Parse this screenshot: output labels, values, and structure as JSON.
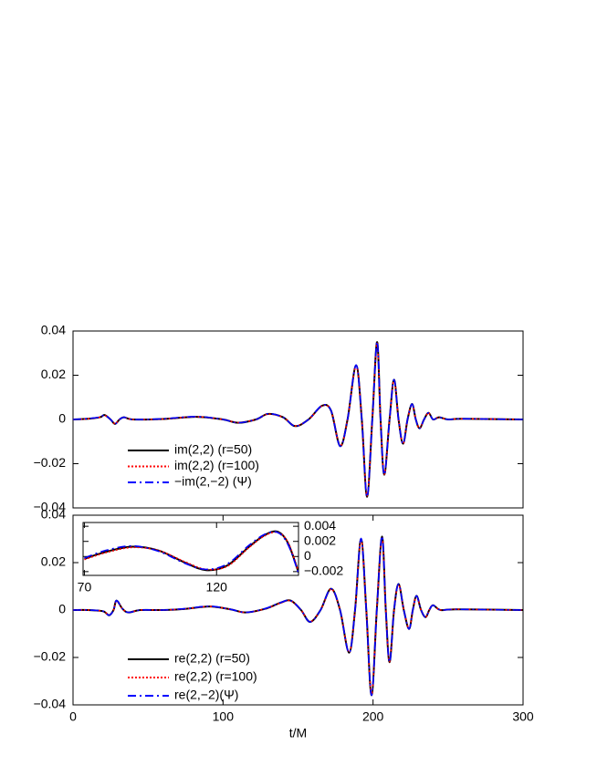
{
  "chart_data": [
    {
      "type": "line",
      "panel": "top",
      "x": [
        0,
        10,
        18,
        21,
        25,
        28,
        31,
        34,
        40,
        60,
        82,
        100,
        110,
        122,
        130,
        140,
        148,
        157,
        166,
        172,
        178,
        183,
        188.7,
        192.5,
        196,
        199.5,
        202.7,
        205,
        207.5,
        211,
        214,
        217,
        220,
        223,
        226,
        228.5,
        231,
        234,
        237,
        240,
        244,
        250,
        260,
        300
      ],
      "series": [
        {
          "name": "im(2,2) (r=50)",
          "color": "#000000",
          "dash": "solid",
          "values": [
            0,
            0.0003,
            0.001,
            0.002,
            0,
            -0.002,
            0,
            0.001,
            0,
            0.0002,
            0.0012,
            0,
            -0.0015,
            0,
            0.0025,
            0.001,
            -0.003,
            0,
            0.0062,
            0.004,
            -0.012,
            0,
            0.0245,
            0,
            -0.035,
            0,
            0.035,
            0,
            -0.025,
            0,
            0.018,
            0,
            -0.011,
            0,
            0.007,
            0,
            -0.004,
            0,
            0.003,
            0,
            0.001,
            0,
            0.0003,
            0
          ]
        },
        {
          "name": "im(2,2) (r=100)",
          "color": "#ff0000",
          "dash": "dotted",
          "values": [
            0,
            0.0003,
            0.001,
            0.0019,
            0,
            -0.0019,
            0,
            0.001,
            0,
            0.0002,
            0.0012,
            0,
            -0.0014,
            0,
            0.0024,
            0.001,
            -0.0029,
            0,
            0.0061,
            0.004,
            -0.0118,
            0,
            0.0242,
            0,
            -0.0345,
            0,
            0.0345,
            0,
            -0.0248,
            0,
            0.0178,
            0,
            -0.011,
            0,
            0.0068,
            0,
            -0.004,
            0,
            0.0029,
            0,
            0.001,
            0,
            0.0003,
            0
          ]
        },
        {
          "name": "−im(2,−2) (Ψ)",
          "color": "#0000ff",
          "dash": "dashdot",
          "values": [
            0,
            0.0004,
            0.0011,
            0.002,
            0,
            -0.002,
            0,
            0.001,
            0,
            0.0003,
            0.0013,
            0,
            -0.0015,
            0,
            0.0026,
            0.001,
            -0.003,
            0,
            0.0063,
            0.004,
            -0.0121,
            0,
            0.0246,
            0,
            -0.035,
            0,
            0.0352,
            0,
            -0.025,
            0,
            0.018,
            0,
            -0.011,
            0,
            0.007,
            0,
            -0.004,
            0,
            0.003,
            0,
            0.001,
            0,
            0.0003,
            0
          ]
        }
      ],
      "xlim": [
        0,
        300
      ],
      "ylim": [
        -0.04,
        0.04
      ],
      "yticks": [
        {
          "value": -0.04,
          "label": "−0.04"
        },
        {
          "value": -0.02,
          "label": "−0.02"
        },
        0,
        0.02,
        0.04
      ],
      "legend": "lower left"
    },
    {
      "type": "line",
      "panel": "bottom",
      "xlabel": "t/M",
      "x": [
        0,
        10,
        20,
        24,
        27,
        29,
        33,
        37,
        45,
        60,
        75,
        91,
        105,
        115,
        128,
        138,
        145,
        152,
        158,
        165,
        172,
        178,
        184,
        188,
        192,
        195.5,
        199,
        202.5,
        206,
        208.5,
        211,
        214,
        217,
        220.5,
        224,
        226.5,
        229,
        232,
        235,
        237.5,
        240,
        245,
        255,
        300
      ],
      "series": [
        {
          "name": "re(2,2) (r=50)",
          "color": "#000000",
          "dash": "solid",
          "values": [
            0,
            0,
            -0.0005,
            -0.0022,
            0,
            0.004,
            0.0005,
            -0.001,
            0,
            0,
            0.0005,
            0.0015,
            0.0003,
            -0.001,
            0.0005,
            0.003,
            0.004,
            0,
            -0.005,
            0,
            0.009,
            0,
            -0.018,
            0,
            0.03,
            0,
            -0.036,
            0,
            0.031,
            0,
            -0.022,
            0,
            0.011,
            0,
            -0.008,
            0,
            0.006,
            0,
            -0.003,
            0,
            0.002,
            0,
            0.0003,
            0
          ]
        },
        {
          "name": "re(2,2) (r=100)",
          "color": "#ff0000",
          "dash": "dotted",
          "values": [
            0,
            0,
            -0.0005,
            -0.0021,
            0,
            0.0039,
            0.0005,
            -0.001,
            0,
            0,
            0.0005,
            0.0015,
            0.0003,
            -0.001,
            0.0005,
            0.0029,
            0.0039,
            0,
            -0.0049,
            0,
            0.0088,
            0,
            -0.0178,
            0,
            0.0297,
            0,
            -0.0356,
            0,
            0.0307,
            0,
            -0.0218,
            0,
            0.0108,
            0,
            -0.0079,
            0,
            0.0059,
            0,
            -0.003,
            0,
            0.002,
            0,
            0.0003,
            0
          ]
        },
        {
          "name": "re(2,−2)(Ψ)",
          "color": "#0000ff",
          "dash": "dashdot",
          "values": [
            0,
            0,
            -0.0005,
            -0.0022,
            0,
            0.004,
            0.0005,
            -0.001,
            0,
            0,
            0.0006,
            0.0016,
            0.0003,
            -0.001,
            0.0006,
            0.0031,
            0.004,
            0,
            -0.005,
            0,
            0.009,
            0,
            -0.018,
            0,
            0.0302,
            0,
            -0.036,
            0,
            0.0312,
            0,
            -0.022,
            0,
            0.011,
            0,
            -0.008,
            0,
            0.006,
            0,
            -0.003,
            0,
            0.002,
            0,
            0.0003,
            0
          ]
        }
      ],
      "xlim": [
        0,
        300
      ],
      "xticks": [
        0,
        100,
        200,
        300
      ],
      "ylim": [
        -0.04,
        0.04
      ],
      "yticks": [
        {
          "value": -0.04,
          "label": "−0.04"
        },
        {
          "value": -0.02,
          "label": "−0.02"
        },
        0,
        0.02,
        0.04
      ],
      "legend": "lower left"
    },
    {
      "type": "line",
      "panel": "inset",
      "x": [
        70,
        78,
        88,
        98,
        108,
        116,
        124,
        132,
        138,
        143,
        147,
        151
      ],
      "series": [
        {
          "color": "#000000",
          "dash": "solid",
          "values": [
            -0.0003,
            0.0006,
            0.0013,
            0.0008,
            -0.0008,
            -0.0018,
            -0.0012,
            0.0012,
            0.0028,
            0.0033,
            0.0018,
            -0.0021
          ]
        },
        {
          "color": "#ff0000",
          "dash": "dotted",
          "values": [
            -0.0004,
            0.0005,
            0.0012,
            0.0008,
            -0.0007,
            -0.0017,
            -0.0013,
            0.0011,
            0.0027,
            0.0032,
            0.0019,
            -0.002
          ]
        },
        {
          "color": "#0000ff",
          "dash": "dashdot",
          "values": [
            -0.0002,
            0.0008,
            0.0014,
            0.0007,
            -0.0009,
            -0.0017,
            -0.001,
            0.0014,
            0.0029,
            0.0032,
            0.0016,
            -0.0022
          ]
        }
      ],
      "xlim": [
        69.5,
        151
      ],
      "xticks": [
        70,
        120
      ],
      "ylim": [
        -0.0025,
        0.0045
      ],
      "yticks": [
        {
          "value": -0.002,
          "label": "−0.002"
        },
        0,
        0.002,
        0.004
      ]
    }
  ]
}
